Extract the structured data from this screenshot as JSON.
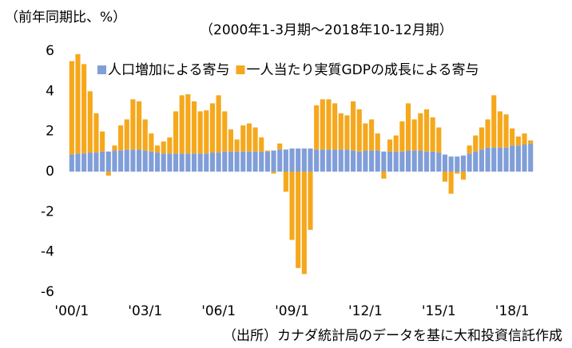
{
  "chart_data": {
    "type": "stacked_bar",
    "title": "（前年同期比、%）",
    "subtitle": "（2000年1-3月期～2018年10-12月期）",
    "source": "（出所）カナダ統計局のデータを基に大和投資信託作成",
    "categories": [
      "'00/1",
      null,
      null,
      null,
      null,
      null,
      null,
      null,
      null,
      null,
      null,
      null,
      "'03/1",
      null,
      null,
      null,
      null,
      null,
      null,
      null,
      null,
      null,
      null,
      null,
      "'06/1",
      null,
      null,
      null,
      null,
      null,
      null,
      null,
      null,
      null,
      null,
      null,
      "'09/1",
      null,
      null,
      null,
      null,
      null,
      null,
      null,
      null,
      null,
      null,
      null,
      "'12/1",
      null,
      null,
      null,
      null,
      null,
      null,
      null,
      null,
      null,
      null,
      null,
      "'15/1",
      null,
      null,
      null,
      null,
      null,
      null,
      null,
      null,
      null,
      null,
      null,
      "'18/1",
      null,
      null,
      null
    ],
    "series": [
      {
        "name": "人口増加による寄与",
        "color": "#809ed8",
        "values": [
          0.85,
          0.9,
          0.9,
          0.95,
          0.95,
          1.0,
          1.0,
          1.05,
          1.05,
          1.1,
          1.1,
          1.1,
          1.05,
          1.0,
          0.95,
          0.9,
          0.9,
          0.9,
          0.9,
          0.9,
          0.9,
          0.9,
          0.9,
          0.95,
          0.95,
          1.0,
          1.0,
          1.0,
          1.0,
          1.0,
          1.0,
          1.0,
          1.0,
          1.05,
          1.1,
          1.1,
          1.15,
          1.15,
          1.15,
          1.15,
          1.1,
          1.1,
          1.1,
          1.1,
          1.1,
          1.1,
          1.05,
          1.0,
          1.05,
          1.05,
          1.05,
          1.0,
          1.0,
          1.0,
          1.0,
          1.05,
          1.05,
          1.05,
          1.0,
          1.0,
          0.95,
          0.85,
          0.75,
          0.75,
          0.8,
          0.9,
          1.0,
          1.1,
          1.2,
          1.2,
          1.2,
          1.2,
          1.3,
          1.3,
          1.35,
          1.4
        ]
      },
      {
        "name": "一人当たり実質GDPの成長による寄与",
        "color": "#f5a81c",
        "values": [
          4.65,
          4.95,
          4.45,
          3.05,
          1.95,
          1.0,
          -0.2,
          0.25,
          1.25,
          1.5,
          2.5,
          2.4,
          1.55,
          0.9,
          0.35,
          0.6,
          0.8,
          2.1,
          2.9,
          2.95,
          2.6,
          2.1,
          2.15,
          2.45,
          2.85,
          2.0,
          1.1,
          0.6,
          1.3,
          1.4,
          1.2,
          0.7,
          0.05,
          -0.1,
          0.3,
          -1.0,
          -3.4,
          -4.8,
          -5.1,
          -2.9,
          2.2,
          2.5,
          2.5,
          2.3,
          1.8,
          1.7,
          2.45,
          2.1,
          1.35,
          1.55,
          0.85,
          -0.35,
          0.6,
          0.8,
          1.5,
          2.35,
          1.55,
          1.85,
          2.1,
          1.7,
          1.25,
          -0.5,
          -1.1,
          -0.1,
          -0.4,
          0.4,
          0.8,
          1.1,
          1.4,
          2.6,
          1.8,
          1.65,
          0.85,
          0.45,
          0.55,
          0.15
        ]
      }
    ],
    "ylim": [
      -6,
      6
    ],
    "yticks": [
      6,
      4,
      2,
      0,
      -2,
      -4,
      -6
    ],
    "grid": false
  }
}
